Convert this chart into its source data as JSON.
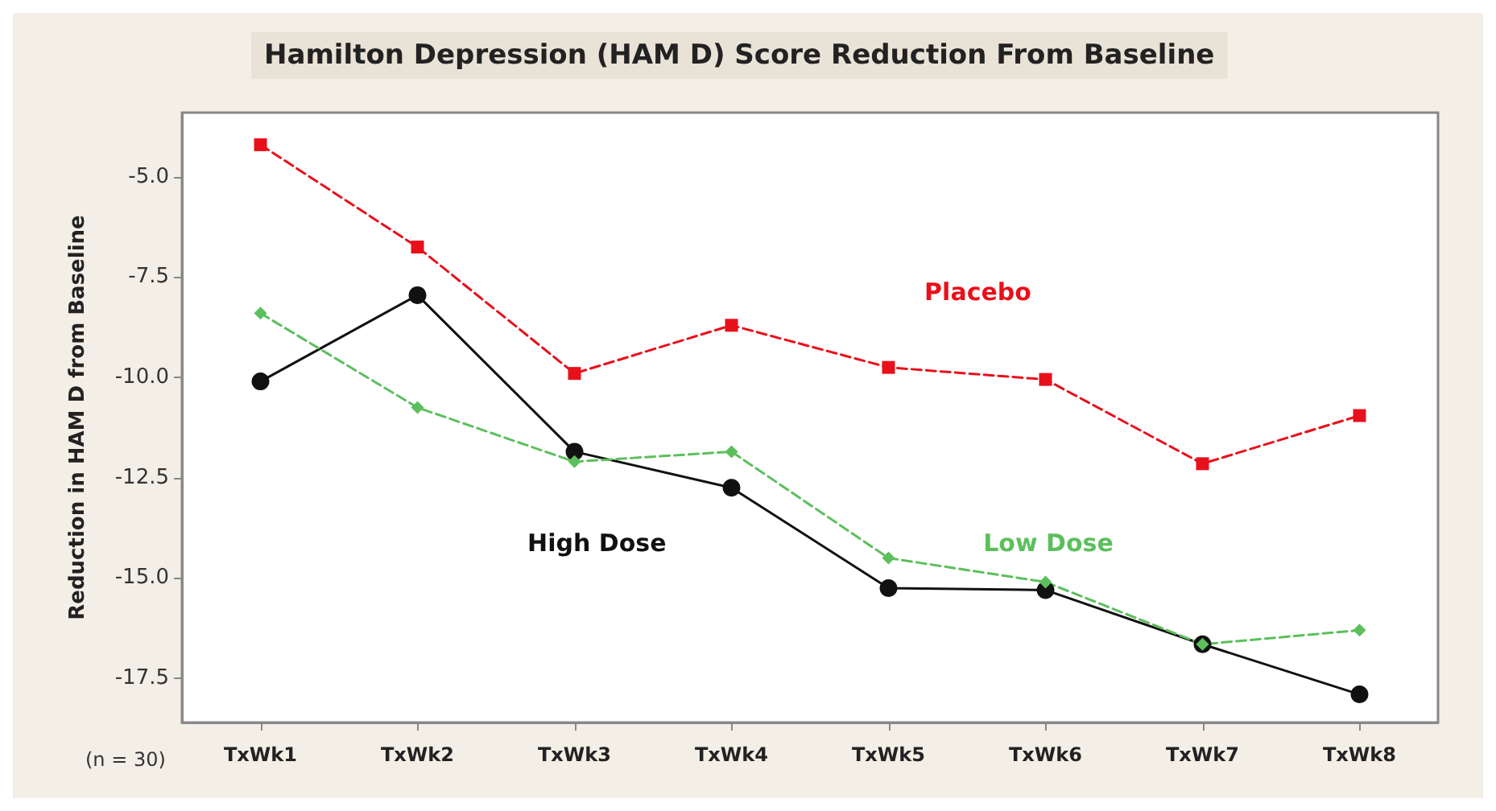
{
  "chart_data": {
    "type": "line",
    "title": "Hamilton Depression (HAM D) Score Reduction From Baseline",
    "ylabel": "Reduction in HAM D from Baseline",
    "annotations": [
      "(n = 30)"
    ],
    "categories": [
      "TxWk1",
      "TxWk2",
      "TxWk3",
      "TxWk4",
      "TxWk5",
      "TxWk6",
      "TxWk7",
      "TxWk8"
    ],
    "ylim": [
      -18.6,
      -3.4
    ],
    "yticks": [
      {
        "value": -5,
        "label": "-5.0"
      },
      -7.5,
      {
        "value": -10,
        "label": "-10.0"
      },
      -12.5,
      {
        "value": -15,
        "label": "-15.0"
      },
      -17.5
    ],
    "grid": false,
    "legend": false,
    "series": [
      {
        "name": "Placebo",
        "color": "#e8101a",
        "marker": "square",
        "line_style": "dashed",
        "values": [
          -4.2,
          -6.75,
          -9.9,
          -8.7,
          -9.75,
          -10.05,
          -12.15,
          -10.95
        ]
      },
      {
        "name": "High Dose",
        "color": "#111111",
        "marker": "circle",
        "line_style": "solid",
        "values": [
          -10.1,
          -7.95,
          -11.85,
          -12.75,
          -15.25,
          -15.3,
          -16.65,
          -17.9
        ]
      },
      {
        "name": "Low Dose",
        "color": "#5cbf5c",
        "marker": "diamond",
        "line_style": "dashed",
        "values": [
          -8.4,
          -10.75,
          -12.1,
          -11.85,
          -14.5,
          -15.1,
          -16.65,
          -16.3
        ]
      }
    ]
  }
}
